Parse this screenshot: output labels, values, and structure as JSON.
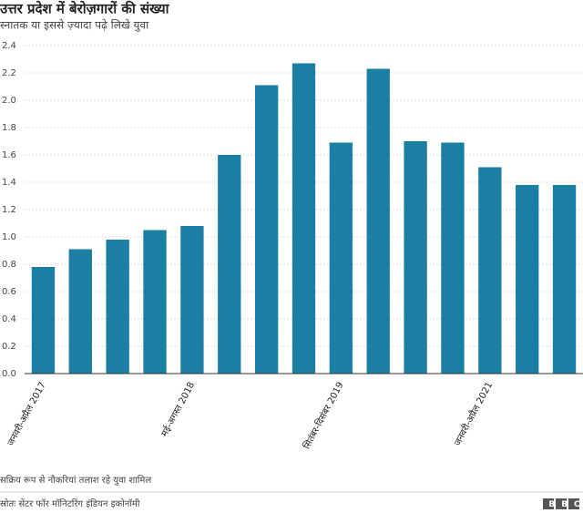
{
  "chart_data": {
    "type": "bar",
    "title": "उत्तर प्रदेश में बेरोज़गारों की संख्या",
    "subtitle": "स्नातक या इससे ज़्यादा पढ़े लिखे युवा",
    "categories": [
      "जनवरी-अप्रैल 2017",
      null,
      null,
      null,
      "मई-अगस्त 2018",
      null,
      null,
      null,
      "सितंबर-दिसंबर 2019",
      null,
      null,
      null,
      "जनवरी-अप्रैल 2021",
      null,
      null
    ],
    "values": [
      0.78,
      0.91,
      0.98,
      1.05,
      1.08,
      1.6,
      2.11,
      2.27,
      1.69,
      2.23,
      1.7,
      1.69,
      1.51,
      1.38,
      1.38
    ],
    "color": "#1b7fa3",
    "ylim": [
      0,
      2.4
    ],
    "yticks": [
      {
        "value": 0,
        "label": "0.0"
      },
      0.2,
      0.4,
      0.6,
      0.8,
      {
        "value": 1,
        "label": "1.0"
      },
      1.2,
      1.4,
      1.6,
      1.8,
      {
        "value": 2,
        "label": "2.0"
      },
      2.2,
      2.4
    ],
    "grid": true,
    "note": "सक्रिय रूप से नौकरियां तलाश रहे युवा शामिल",
    "source": "स्रोतः सेंटर फॉर मॉनिटरिंग इंडियन इकोनॉमी",
    "logo": "BBC"
  }
}
